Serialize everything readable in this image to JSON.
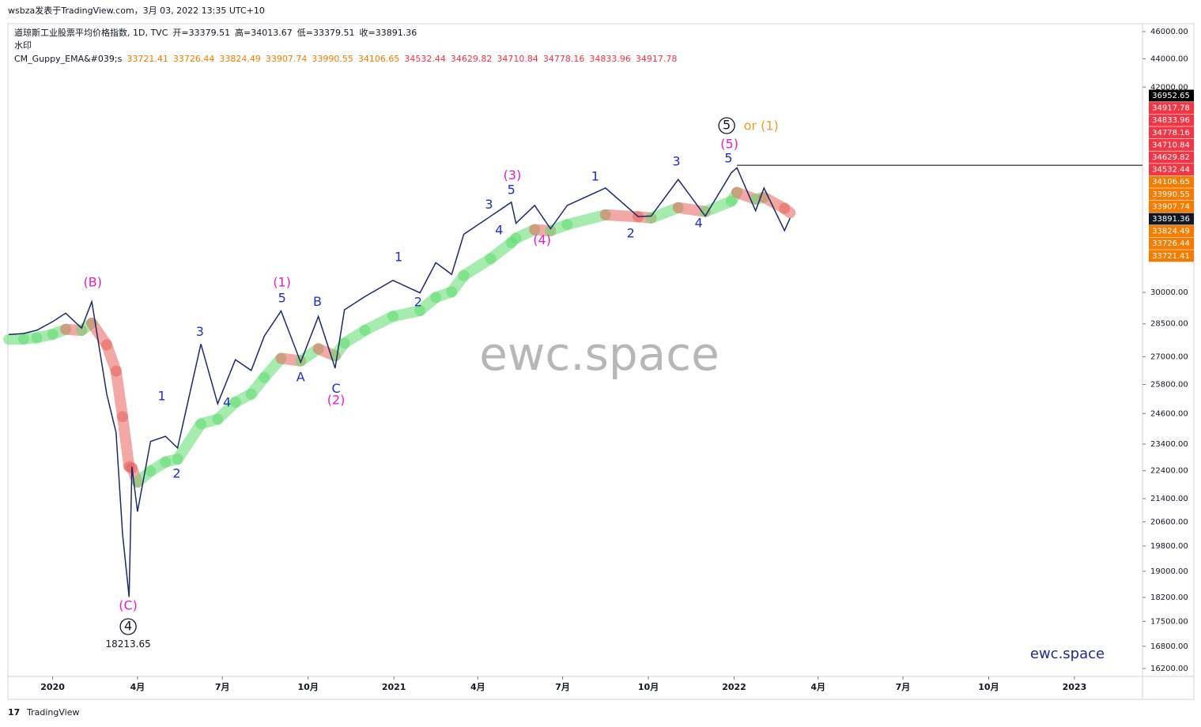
{
  "header": {
    "publisher": "wsbza发表于TradingView.com，3月 03, 2022 13:35 UTC+10",
    "footer": "TradingView"
  },
  "chart_data": {
    "type": "line",
    "title": "道琼斯工业股票平均价格指数, 1D, TVC",
    "ohlc": [
      "开=33379.51",
      "高=34013.67",
      "低=33379.51",
      "收=33891.36"
    ],
    "subtitle": "水印",
    "indicator": {
      "name": "CM_Guppy_EMA&#039;s",
      "values": [
        33721.41,
        33726.44,
        33824.49,
        33907.74,
        33990.55,
        34106.65,
        34532.44,
        34629.82,
        34710.84,
        34778.16,
        34833.96,
        34917.78
      ],
      "colors": [
        "#f57c00",
        "#f57c00",
        "#f57c00",
        "#f57c00",
        "#f57c00",
        "#f57c00",
        "#f23645",
        "#f23645",
        "#f23645",
        "#f23645",
        "#f23645",
        "#f23645"
      ]
    },
    "watermark": "ewc.space",
    "brand": "ewc.space",
    "log_scale": true,
    "xlim": [
      "2019-11-14",
      "2023-03-15"
    ],
    "ylim": [
      15990,
      46600
    ],
    "xticks": [
      {
        "value": "2020-01-01",
        "label": "2020"
      },
      {
        "value": "2020-04-01",
        "label": "4月"
      },
      {
        "value": "2020-07-01",
        "label": "7月"
      },
      {
        "value": "2020-10-01",
        "label": "10月"
      },
      {
        "value": "2021-01-01",
        "label": "2021"
      },
      {
        "value": "2021-04-01",
        "label": "4月"
      },
      {
        "value": "2021-07-01",
        "label": "7月"
      },
      {
        "value": "2021-10-01",
        "label": "10月"
      },
      {
        "value": "2022-01-01",
        "label": "2022"
      },
      {
        "value": "2022-04-01",
        "label": "4月"
      },
      {
        "value": "2022-07-01",
        "label": "7月"
      },
      {
        "value": "2022-10-01",
        "label": "10月"
      },
      {
        "value": "2023-01-01",
        "label": "2023"
      }
    ],
    "yticks": [
      {
        "value": 46000,
        "label": "46000.00"
      },
      {
        "value": 44000,
        "label": "44000.00"
      },
      {
        "value": 42000,
        "label": "42000.00"
      },
      {
        "value": 30000,
        "label": "30000.00"
      },
      {
        "value": 28500,
        "label": "28500.00"
      },
      {
        "value": 27000,
        "label": "27000.00"
      },
      {
        "value": 25800,
        "label": "25800.00"
      },
      {
        "value": 24600,
        "label": "24600.00"
      },
      {
        "value": 23400,
        "label": "23400.00"
      },
      {
        "value": 22400,
        "label": "22400.00"
      },
      {
        "value": 21400,
        "label": "21400.00"
      },
      {
        "value": 20600,
        "label": "20600.00"
      },
      {
        "value": 19800,
        "label": "19800.00"
      },
      {
        "value": 19000,
        "label": "19000.00"
      },
      {
        "value": 18200,
        "label": "18200.00"
      },
      {
        "value": 17500,
        "label": "17500.00"
      },
      {
        "value": 16800,
        "label": "16800.00"
      },
      {
        "value": 16200,
        "label": "16200.00"
      }
    ],
    "series": [
      {
        "name": "道琼斯工业股票平均价格指数",
        "color": "#1c2a6b",
        "x": [
          "2019-11-15",
          "2019-12-01",
          "2019-12-15",
          "2020-01-01",
          "2020-01-15",
          "2020-02-01",
          "2020-02-12",
          "2020-02-28",
          "2020-03-09",
          "2020-03-16",
          "2020-03-23",
          "2020-03-26",
          "2020-04-01",
          "2020-04-15",
          "2020-05-01",
          "2020-05-14",
          "2020-06-08",
          "2020-06-26",
          "2020-07-15",
          "2020-08-01",
          "2020-08-15",
          "2020-09-02",
          "2020-09-23",
          "2020-10-12",
          "2020-10-30",
          "2020-11-09",
          "2020-12-01",
          "2020-12-31",
          "2021-01-29",
          "2021-02-15",
          "2021-03-04",
          "2021-03-17",
          "2021-04-15",
          "2021-05-07",
          "2021-05-12",
          "2021-06-01",
          "2021-06-18",
          "2021-07-06",
          "2021-08-16",
          "2021-09-20",
          "2021-10-04",
          "2021-11-02",
          "2021-12-01",
          "2021-12-29",
          "2022-01-04",
          "2022-01-24",
          "2022-02-02",
          "2022-02-24",
          "2022-03-02"
        ],
        "values": [
          28000,
          28050,
          28200,
          28600,
          29000,
          28300,
          29550,
          25400,
          23850,
          20190,
          18213.65,
          22550,
          20950,
          23500,
          23700,
          23250,
          27570,
          25000,
          26870,
          26400,
          27930,
          29100,
          26760,
          28840,
          26500,
          29160,
          29800,
          30600,
          29980,
          31500,
          30900,
          33000,
          34000,
          34780,
          33600,
          34600,
          33300,
          34600,
          35600,
          33970,
          34000,
          36100,
          34000,
          36500,
          36800,
          34300,
          35600,
          33200,
          33891.36
        ]
      }
    ],
    "price_labels": [
      {
        "value": 36952.65,
        "color": "#000000"
      },
      {
        "value": 34917.78,
        "color": "#f23645"
      },
      {
        "value": 34833.96,
        "color": "#f23645"
      },
      {
        "value": 34778.16,
        "color": "#f23645"
      },
      {
        "value": 34710.84,
        "color": "#f23645"
      },
      {
        "value": 34629.82,
        "color": "#f23645"
      },
      {
        "value": 34532.44,
        "color": "#f23645"
      },
      {
        "value": 34106.65,
        "color": "#f57c00"
      },
      {
        "value": 33990.55,
        "color": "#f57c00"
      },
      {
        "value": 33907.74,
        "color": "#f57c00"
      },
      {
        "value": 33891.36,
        "color": "#131722"
      },
      {
        "value": 33824.49,
        "color": "#f57c00"
      },
      {
        "value": 33726.44,
        "color": "#f57c00"
      },
      {
        "value": 33721.41,
        "color": "#f57c00"
      }
    ],
    "annotations": [
      {
        "text": "(B)",
        "x": "2020-02-13",
        "y": 30470,
        "color": "#e020c8"
      },
      {
        "text": "(C)",
        "x": "2020-03-22",
        "y": 17940,
        "color": "#e020c8"
      },
      {
        "text": "4",
        "x": "2020-03-22",
        "y": 17350,
        "color": "#131722",
        "circled": true
      },
      {
        "text": "18213.65",
        "x": "2020-03-22",
        "y": 16850,
        "color": "#131722"
      },
      {
        "text": "3",
        "x": "2020-06-07",
        "y": 28110,
        "color": "#1f2fc0"
      },
      {
        "text": "1",
        "x": "2020-04-27",
        "y": 25290,
        "color": "#1f2fc0"
      },
      {
        "text": "2",
        "x": "2020-05-13",
        "y": 22270,
        "color": "#1f2fc0"
      },
      {
        "text": "4",
        "x": "2020-07-06",
        "y": 25030,
        "color": "#1f2fc0"
      },
      {
        "text": "(1)",
        "x": "2020-09-03",
        "y": 30470,
        "color": "#e020c8"
      },
      {
        "text": "5",
        "x": "2020-09-03",
        "y": 29690,
        "color": "#1f2fc0"
      },
      {
        "text": "B",
        "x": "2020-10-11",
        "y": 29530,
        "color": "#1f2fc0"
      },
      {
        "text": "A",
        "x": "2020-09-23",
        "y": 26090,
        "color": "#1f2fc0"
      },
      {
        "text": "C",
        "x": "2020-10-31",
        "y": 25610,
        "color": "#1f2fc0"
      },
      {
        "text": "(2)",
        "x": "2020-10-31",
        "y": 25120,
        "color": "#e020c8"
      },
      {
        "text": "1",
        "x": "2021-01-06",
        "y": 31760,
        "color": "#1f2fc0"
      },
      {
        "text": "2",
        "x": "2021-01-27",
        "y": 29500,
        "color": "#1f2fc0"
      },
      {
        "text": "(3)",
        "x": "2021-05-08",
        "y": 36330,
        "color": "#e020c8"
      },
      {
        "text": "5",
        "x": "2021-05-07",
        "y": 35450,
        "color": "#1f2fc0"
      },
      {
        "text": "3",
        "x": "2021-04-13",
        "y": 34630,
        "color": "#1f2fc0"
      },
      {
        "text": "4",
        "x": "2021-04-24",
        "y": 33190,
        "color": "#1f2fc0"
      },
      {
        "text": "(4)",
        "x": "2021-06-09",
        "y": 32660,
        "color": "#e020c8"
      },
      {
        "text": "1",
        "x": "2021-08-05",
        "y": 36240,
        "color": "#1f2fc0"
      },
      {
        "text": "2",
        "x": "2021-09-12",
        "y": 33020,
        "color": "#1f2fc0"
      },
      {
        "text": "3",
        "x": "2021-10-31",
        "y": 37150,
        "color": "#1f2fc0"
      },
      {
        "text": "4",
        "x": "2021-11-24",
        "y": 33580,
        "color": "#1f2fc0"
      },
      {
        "text": "(5)",
        "x": "2021-12-27",
        "y": 38220,
        "color": "#e020c8"
      },
      {
        "text": "5",
        "x": "2021-12-26",
        "y": 37350,
        "color": "#1f2fc0"
      },
      {
        "text": "5",
        "x": "2021-12-24",
        "y": 39430,
        "color": "#131722",
        "circled": true
      },
      {
        "text": "or (1)",
        "x": "2022-01-30",
        "y": 39370,
        "color": "#f59a23"
      }
    ]
  }
}
